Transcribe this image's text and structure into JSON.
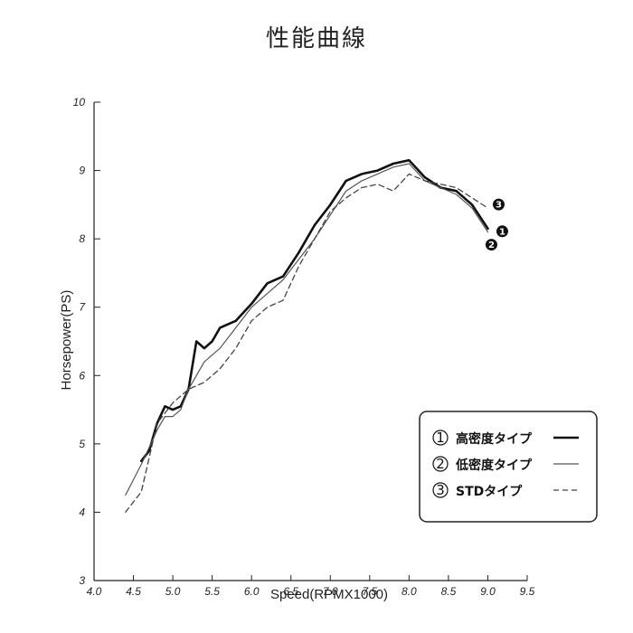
{
  "chart_data": {
    "type": "line",
    "title": "性能曲線",
    "xlabel": "Speed(RPMX1000)",
    "ylabel": "Horsepower(PS)",
    "xlim": [
      4.0,
      9.5
    ],
    "ylim": [
      3,
      10
    ],
    "x_ticks": [
      "4.0",
      "4.5",
      "5.0",
      "5.5",
      "6.0",
      "6.5",
      "7.0",
      "7.5",
      "8.0",
      "8.5",
      "9.0",
      "9.5"
    ],
    "y_ticks": [
      "3",
      "4",
      "5",
      "6",
      "7",
      "8",
      "9",
      "10"
    ],
    "grid": false,
    "legend_position": "bottom-right",
    "series": [
      {
        "name": "高密度タイプ",
        "marker": "1",
        "style": "thick-solid",
        "color": "#111111",
        "x": [
          4.6,
          4.7,
          4.8,
          4.9,
          5.0,
          5.1,
          5.2,
          5.3,
          5.4,
          5.5,
          5.6,
          5.8,
          6.0,
          6.2,
          6.4,
          6.6,
          6.8,
          7.0,
          7.2,
          7.4,
          7.6,
          7.8,
          8.0,
          8.2,
          8.4,
          8.6,
          8.8,
          9.0
        ],
        "y": [
          4.75,
          4.9,
          5.3,
          5.55,
          5.5,
          5.55,
          5.8,
          6.5,
          6.4,
          6.5,
          6.7,
          6.8,
          7.05,
          7.35,
          7.45,
          7.8,
          8.2,
          8.5,
          8.85,
          8.95,
          9.0,
          9.1,
          9.15,
          8.9,
          8.75,
          8.7,
          8.5,
          8.15
        ]
      },
      {
        "name": "低密度タイプ",
        "marker": "2",
        "style": "thin-solid",
        "color": "#555555",
        "x": [
          4.4,
          4.6,
          4.8,
          4.9,
          5.0,
          5.1,
          5.2,
          5.3,
          5.4,
          5.6,
          5.8,
          6.0,
          6.2,
          6.4,
          6.6,
          6.8,
          7.0,
          7.2,
          7.4,
          7.6,
          7.8,
          8.0,
          8.2,
          8.4,
          8.6,
          8.8,
          9.0
        ],
        "y": [
          4.25,
          4.7,
          5.2,
          5.4,
          5.4,
          5.5,
          5.8,
          6.0,
          6.2,
          6.4,
          6.7,
          7.0,
          7.2,
          7.4,
          7.7,
          8.0,
          8.35,
          8.7,
          8.85,
          8.95,
          9.05,
          9.1,
          8.85,
          8.75,
          8.65,
          8.45,
          8.1
        ]
      },
      {
        "name": "STDタイプ",
        "marker": "3",
        "style": "dashed",
        "color": "#444444",
        "x": [
          4.4,
          4.6,
          4.8,
          5.0,
          5.2,
          5.4,
          5.6,
          5.8,
          6.0,
          6.2,
          6.4,
          6.6,
          6.8,
          7.0,
          7.2,
          7.4,
          7.6,
          7.8,
          8.0,
          8.2,
          8.4,
          8.6,
          8.8,
          9.0
        ],
        "y": [
          4.0,
          4.3,
          5.3,
          5.6,
          5.8,
          5.9,
          6.1,
          6.4,
          6.8,
          7.0,
          7.1,
          7.6,
          8.0,
          8.4,
          8.6,
          8.75,
          8.8,
          8.7,
          8.95,
          8.85,
          8.8,
          8.75,
          8.6,
          8.45
        ]
      }
    ]
  }
}
